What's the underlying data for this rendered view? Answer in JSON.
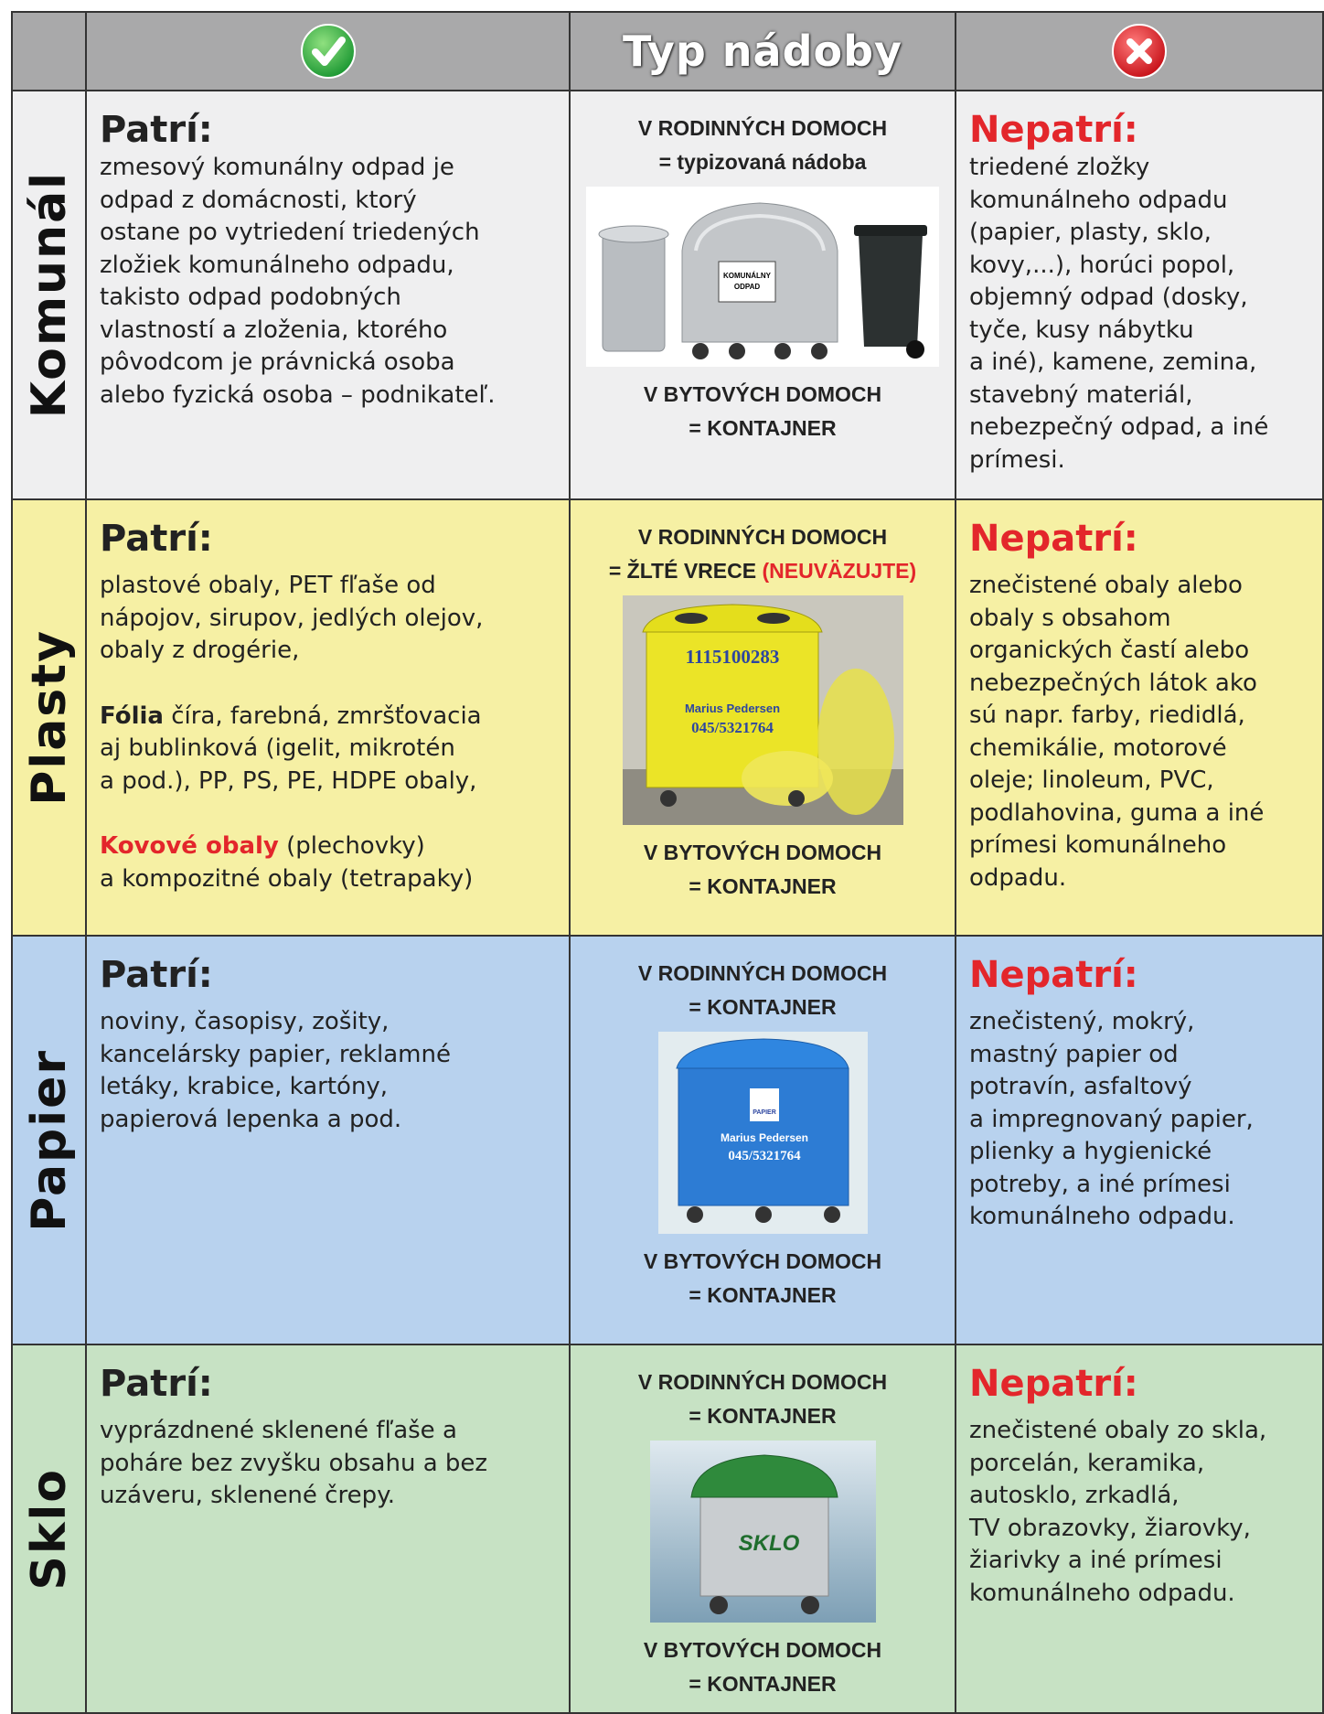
{
  "header": {
    "column_title": "Typ nádoby"
  },
  "rows": [
    {
      "category": "Komunál",
      "belongs_heading": "Patrí:",
      "belongs": [
        [
          "zmesový komunálny odpad je",
          "odpad z domácnosti, ktorý",
          "ostane po vytriedení triedených",
          "zložiek komunálneho odpadu,",
          "takisto odpad podobných",
          "vlastností a zloženia, ktorého",
          "pôvodcom je právnická osoba",
          "alebo fyzická osoba – podnikateľ."
        ]
      ],
      "container_top": [
        "V RODINNÝCH DOMOCH",
        "= typizovaná nádoba"
      ],
      "image_text": [
        "KOMUNÁLNY",
        "ODPAD"
      ],
      "container_bottom": [
        "V BYTOVÝCH DOMOCH",
        "= KONTAJNER"
      ],
      "not_belongs_heading": "Nepatrí:",
      "not_belongs": [
        "triedené zložky",
        "komunálneho odpadu",
        "(papier, plasty, sklo,",
        "kovy,...), horúci popol,",
        "objemný odpad (dosky,",
        "tyče, kusy nábytku",
        "a iné), kamene, zemina,",
        "stavebný materiál,",
        "nebezpečný odpad, a iné",
        "prímesi."
      ]
    },
    {
      "category": "Plasty",
      "belongs_heading": "Patrí:",
      "belongs": [
        [
          "plastové obaly, PET fľaše od",
          "nápojov, sirupov, jedlých olejov,",
          "obaly z drogérie,"
        ],
        [
          {
            "bold": "Fólia",
            "text": "  číra, farebná, zmršťovacia"
          },
          "aj bublinková  (igelit, mikrotén",
          "a pod.), PP, PS, PE, HDPE obaly,"
        ],
        [
          {
            "red": "Kovové obaly",
            "text": " (plechovky)"
          },
          "a kompozitné obaly (tetrapaky)"
        ]
      ],
      "container_top": [
        "V RODINNÝCH DOMOCH",
        {
          "text": "= ŽLTÉ VRECE ",
          "red": "(NEUVÄZUJTE)"
        }
      ],
      "image_text": [
        "1115100283",
        "Marius Pedersen",
        "045/5321764"
      ],
      "container_bottom": [
        "V BYTOVÝCH DOMOCH",
        "= KONTAJNER"
      ],
      "not_belongs_heading": "Nepatrí:",
      "not_belongs": [
        "znečistené obaly alebo",
        "obaly s obsahom",
        "organických častí alebo",
        "nebezpečných látok ako",
        "sú napr. farby, riedidlá,",
        "chemikálie, motorové",
        "oleje; linoleum, PVC,",
        "podlahovina, guma a iné",
        "prímesi  komunálneho",
        "odpadu."
      ]
    },
    {
      "category": "Papier",
      "belongs_heading": "Patrí:",
      "belongs": [
        [
          "noviny, časopisy, zošity,",
          "kancelársky papier, reklamné",
          "letáky, krabice, kartóny,",
          "papierová lepenka a pod."
        ]
      ],
      "container_top": [
        "V RODINNÝCH DOMOCH",
        "= KONTAJNER"
      ],
      "image_text": [
        "PAPIER",
        "Marius Pedersen",
        "045/5321764"
      ],
      "container_bottom": [
        "V BYTOVÝCH DOMOCH",
        "= KONTAJNER"
      ],
      "not_belongs_heading": "Nepatrí:",
      "not_belongs": [
        "znečistený, mokrý,",
        "mastný papier od",
        "potravín, asfaltový",
        "a impregnovaný papier,",
        "plienky a hygienické",
        "potreby, a iné prímesi",
        "komunálneho odpadu."
      ]
    },
    {
      "category": "Sklo",
      "belongs_heading": "Patrí:",
      "belongs": [
        [
          "vyprázdnené sklenené fľaše a",
          "poháre bez zvyšku obsahu a bez",
          "uzáveru, sklenené črepy."
        ]
      ],
      "container_top": [
        "V RODINNÝCH DOMOCH",
        "= KONTAJNER"
      ],
      "image_text": [
        "SKLO"
      ],
      "container_bottom": [
        "V BYTOVÝCH DOMOCH",
        "= KONTAJNER"
      ],
      "not_belongs_heading": "Nepatrí:",
      "not_belongs": [
        "znečistené obaly zo skla,",
        "porcelán, keramika,",
        "autosklo, zrkadlá,",
        "TV obrazovky, žiarovky,",
        "žiarivky a iné prímesi",
        "komunálneho odpadu."
      ]
    }
  ]
}
